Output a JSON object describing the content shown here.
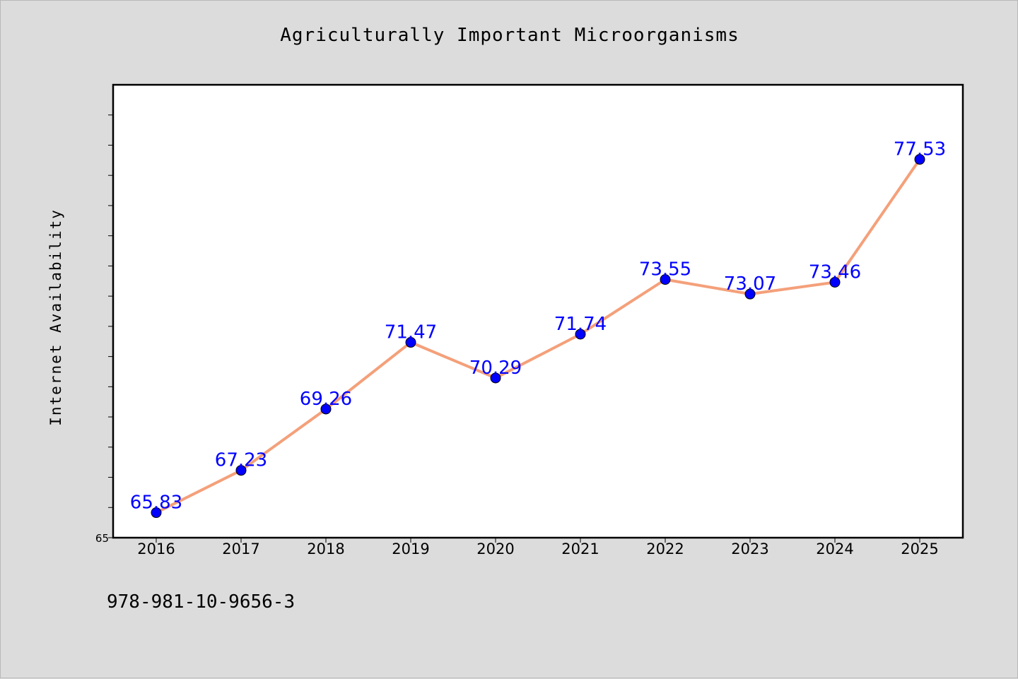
{
  "figure": {
    "title": "Agriculturally Important Microorganisms",
    "footer_text": "978-981-10-9656-3",
    "background_color": "#dcdcdc",
    "plot_background_color": "#ffffff"
  },
  "chart_data": {
    "type": "line",
    "title": "Agriculturally Important Microorganisms",
    "xlabel": "",
    "ylabel": "Internet Availability",
    "categories": [
      "2016",
      "2017",
      "2018",
      "2019",
      "2020",
      "2021",
      "2022",
      "2023",
      "2024",
      "2025"
    ],
    "series": [
      {
        "values": [
          65.83,
          67.23,
          69.26,
          71.47,
          70.29,
          71.74,
          73.55,
          73.07,
          73.46,
          77.53
        ],
        "line_color": "#f4a07a",
        "marker_color": "#0000ff",
        "label_color": "#0000ff"
      }
    ],
    "ylim": [
      65,
      80
    ],
    "y_tick_labels": [
      "65"
    ],
    "y_tick_step": 1,
    "data_labels": [
      "65.83",
      "67.23",
      "69.26",
      "71.47",
      "70.29",
      "71.74",
      "73.55",
      "73.07",
      "73.46",
      "77.53"
    ],
    "grid": false,
    "legend": "none"
  }
}
